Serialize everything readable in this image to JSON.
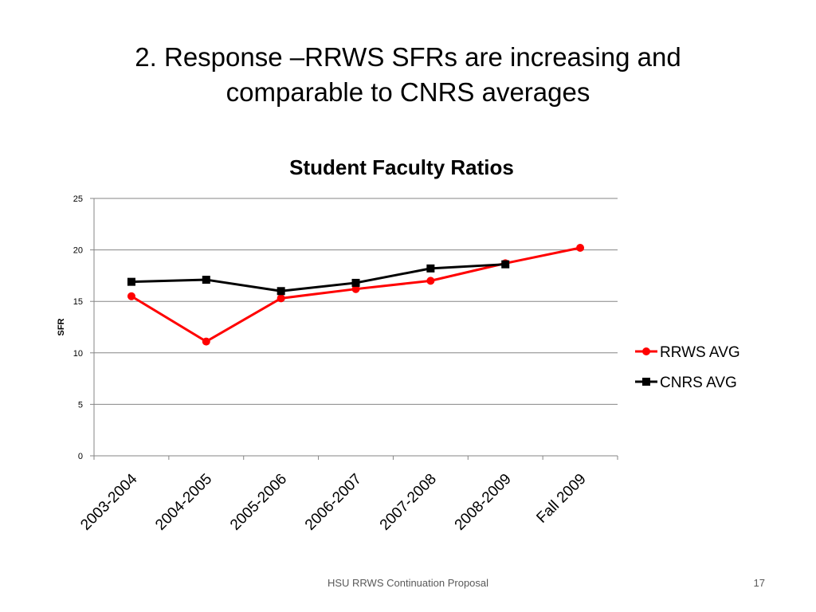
{
  "slide": {
    "title_line1": "2. Response –RRWS SFRs are increasing and",
    "title_line2": "comparable to CNRS averages",
    "footer": "HSU RRWS Continuation Proposal",
    "page_number": "17"
  },
  "chart_data": {
    "type": "line",
    "title": "Student Faculty Ratios",
    "xlabel": "",
    "ylabel": "SFR",
    "ylim": [
      0,
      25
    ],
    "yticks": [
      0,
      5,
      10,
      15,
      20,
      25
    ],
    "grid": true,
    "legend_position": "right",
    "categories": [
      "2003-2004",
      "2004-2005",
      "2005-2006",
      "2006-2007",
      "2007-2008",
      "2008-2009",
      "Fall 2009"
    ],
    "series": [
      {
        "name": "RRWS AVG",
        "color": "#ff0000",
        "marker": "circle",
        "values": [
          15.5,
          11.1,
          15.3,
          16.2,
          17.0,
          18.7,
          20.2
        ]
      },
      {
        "name": "CNRS AVG",
        "color": "#000000",
        "marker": "square",
        "values": [
          16.9,
          17.1,
          16.0,
          16.8,
          18.2,
          18.6,
          null
        ]
      }
    ]
  }
}
